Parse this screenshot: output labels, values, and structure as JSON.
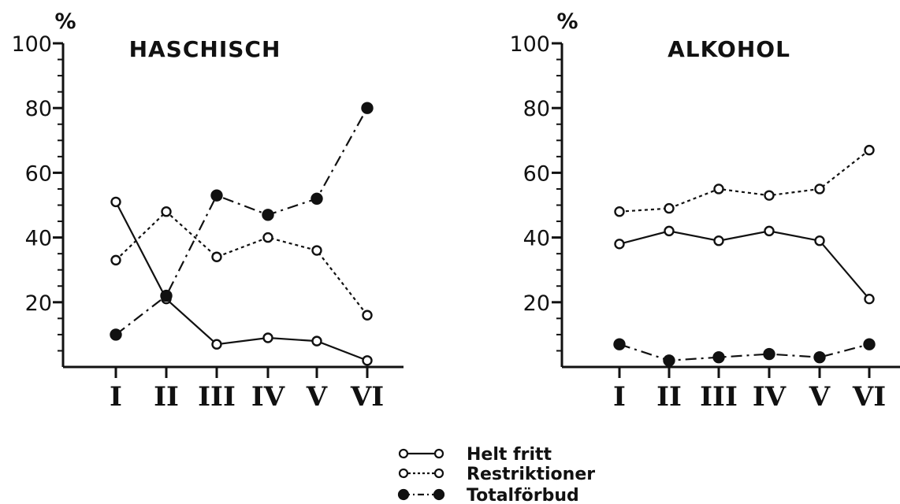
{
  "chart_data": [
    {
      "type": "line",
      "title": "HASCHISCH",
      "ylabel": "%",
      "xlabel": "",
      "categories": [
        "I",
        "II",
        "III",
        "IV",
        "V",
        "VI"
      ],
      "ylim": [
        0,
        100
      ],
      "yticks": [
        "20",
        "40",
        "60",
        "80",
        "100"
      ],
      "grid": false,
      "series": [
        {
          "name": "Helt fritt",
          "values": [
            51,
            21,
            7,
            9,
            8,
            2
          ],
          "marker": "open-circle",
          "line": "solid"
        },
        {
          "name": "Restriktioner",
          "values": [
            33,
            48,
            34,
            40,
            36,
            16
          ],
          "marker": "open-circle",
          "line": "dotted"
        },
        {
          "name": "Totalförbud",
          "values": [
            10,
            22,
            53,
            47,
            52,
            80
          ],
          "marker": "filled-circle",
          "line": "dash-dot"
        }
      ]
    },
    {
      "type": "line",
      "title": "ALKOHOL",
      "ylabel": "%",
      "xlabel": "",
      "categories": [
        "I",
        "II",
        "III",
        "IV",
        "V",
        "VI"
      ],
      "ylim": [
        0,
        100
      ],
      "yticks": [
        "20",
        "40",
        "60",
        "80",
        "100"
      ],
      "grid": false,
      "series": [
        {
          "name": "Helt fritt",
          "values": [
            38,
            42,
            39,
            42,
            39,
            21
          ],
          "marker": "open-circle",
          "line": "solid"
        },
        {
          "name": "Restriktioner",
          "values": [
            48,
            49,
            55,
            53,
            55,
            67
          ],
          "marker": "open-circle",
          "line": "dotted"
        },
        {
          "name": "Totalförbud",
          "values": [
            7,
            2,
            3,
            4,
            3,
            7
          ],
          "marker": "filled-circle",
          "line": "dash-dot"
        }
      ]
    }
  ],
  "legend": {
    "placement": "bottom-center",
    "entries": [
      "Helt fritt",
      "Restriktioner",
      "Totalförbud"
    ]
  },
  "colors": {
    "ink": "#111111",
    "background": "#ffffff"
  }
}
